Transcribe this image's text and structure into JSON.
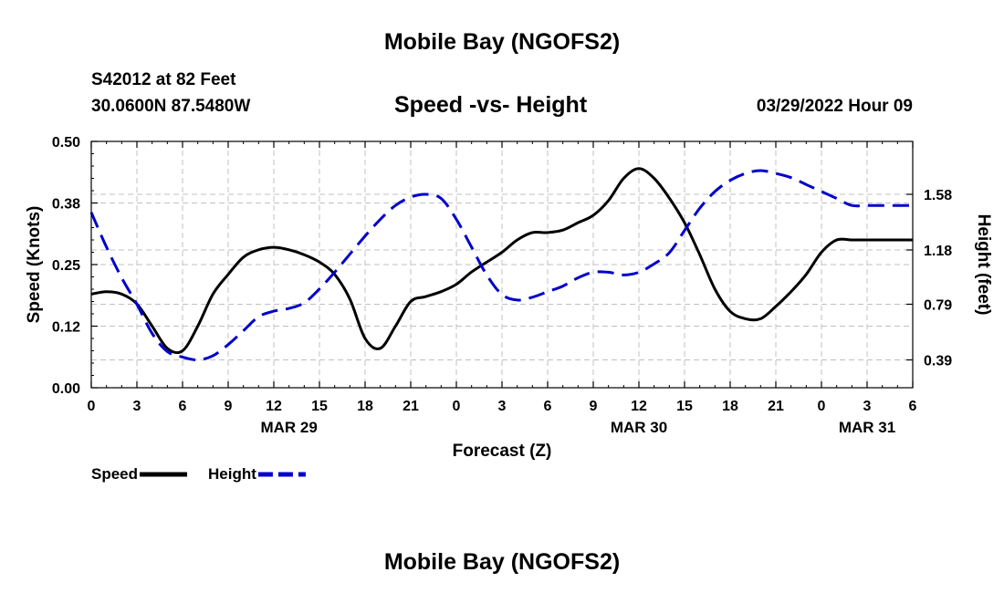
{
  "header": {
    "title": "Mobile Bay (NGOFS2)",
    "station": "S42012 at 82 Feet",
    "coords": "30.0600N  87.5480W",
    "subtitle": "Speed -vs- Height",
    "forecast_time": "03/29/2022 Hour 09"
  },
  "footer": {
    "title": "Mobile Bay (NGOFS2)"
  },
  "legend": [
    {
      "label": "Speed",
      "color": "#000000",
      "style": "solid"
    },
    {
      "label": "Height",
      "color": "#0000cc",
      "style": "dashed"
    }
  ],
  "chart_data": {
    "type": "line",
    "xlabel": "Forecast (Z)",
    "ylabel": "Speed (Knots)",
    "y2label": "Height (feet)",
    "xlim": [
      0,
      54
    ],
    "ylim": [
      0,
      0.5
    ],
    "y2lim": [
      0.19,
      1.96
    ],
    "x_tick_labels": [
      "0",
      "3",
      "6",
      "9",
      "12",
      "15",
      "18",
      "21",
      "0",
      "3",
      "6",
      "9",
      "12",
      "15",
      "18",
      "21",
      "0",
      "3",
      "6"
    ],
    "date_labels": [
      {
        "label": "MAR 29",
        "x": 13
      },
      {
        "label": "MAR 30",
        "x": 36
      },
      {
        "label": "MAR 31",
        "x": 51
      }
    ],
    "y_tick_labels": [
      "0.00",
      "0.12",
      "0.25",
      "0.38",
      "0.50"
    ],
    "y_ticks": [
      0,
      0.125,
      0.25,
      0.375,
      0.5
    ],
    "y2_tick_labels": [
      "0.39",
      "0.79",
      "1.18",
      "1.58"
    ],
    "y2_ticks": [
      0.39,
      0.79,
      1.18,
      1.58
    ],
    "grid": true,
    "series": [
      {
        "name": "Speed",
        "axis": "left",
        "x": [
          0,
          1,
          2,
          3,
          4,
          5,
          6,
          7,
          8,
          9,
          10,
          11,
          12,
          13,
          14,
          15,
          16,
          17,
          18,
          19,
          20,
          21,
          22,
          23,
          24,
          25,
          26,
          27,
          28,
          29,
          30,
          31,
          32,
          33,
          34,
          35,
          36,
          37,
          38,
          39,
          40,
          41,
          42,
          43,
          44,
          45,
          46,
          47,
          48,
          49,
          50,
          51,
          52,
          53,
          54
        ],
        "values": [
          0.19,
          0.195,
          0.19,
          0.17,
          0.125,
          0.08,
          0.075,
          0.125,
          0.19,
          0.23,
          0.265,
          0.28,
          0.285,
          0.28,
          0.27,
          0.255,
          0.23,
          0.18,
          0.1,
          0.08,
          0.125,
          0.175,
          0.185,
          0.195,
          0.21,
          0.235,
          0.255,
          0.275,
          0.3,
          0.315,
          0.315,
          0.32,
          0.335,
          0.35,
          0.38,
          0.425,
          0.445,
          0.425,
          0.385,
          0.335,
          0.27,
          0.2,
          0.155,
          0.14,
          0.14,
          0.165,
          0.195,
          0.23,
          0.275,
          0.3,
          0.3,
          0.3,
          0.3,
          0.3,
          0.3
        ]
      },
      {
        "name": "Height",
        "axis": "right",
        "x": [
          0,
          1,
          2,
          3,
          4,
          5,
          6,
          7,
          8,
          9,
          10,
          11,
          12,
          13,
          14,
          15,
          16,
          17,
          18,
          19,
          20,
          21,
          22,
          23,
          24,
          25,
          26,
          27,
          28,
          29,
          30,
          31,
          32,
          33,
          34,
          35,
          36,
          37,
          38,
          39,
          40,
          41,
          42,
          43,
          44,
          45,
          46,
          47,
          48,
          49,
          50,
          51,
          52,
          53,
          54
        ],
        "values": [
          1.45,
          1.2,
          0.98,
          0.79,
          0.58,
          0.45,
          0.41,
          0.39,
          0.42,
          0.5,
          0.6,
          0.7,
          0.74,
          0.76,
          0.8,
          0.9,
          1.02,
          1.15,
          1.28,
          1.4,
          1.5,
          1.56,
          1.58,
          1.55,
          1.4,
          1.2,
          1.0,
          0.86,
          0.82,
          0.84,
          0.88,
          0.92,
          0.98,
          1.02,
          1.02,
          1.0,
          1.02,
          1.08,
          1.16,
          1.32,
          1.48,
          1.6,
          1.68,
          1.73,
          1.75,
          1.73,
          1.7,
          1.65,
          1.6,
          1.55,
          1.5,
          1.5,
          1.5,
          1.5,
          1.5
        ]
      }
    ]
  }
}
